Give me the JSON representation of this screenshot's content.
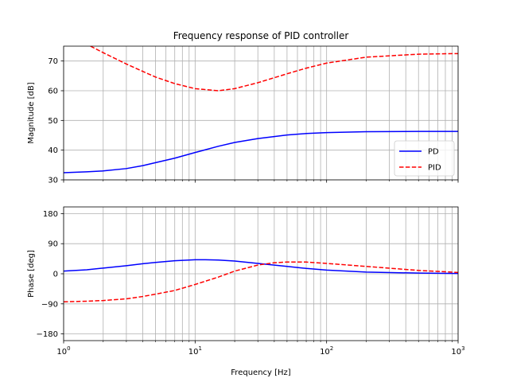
{
  "chart_data": [
    {
      "type": "line",
      "title": "Frequency response of PID controller",
      "xlabel": "",
      "ylabel": "Magnitude [dB]",
      "xscale": "log",
      "xlim": [
        1,
        1000
      ],
      "ylim": [
        30,
        75
      ],
      "yticks": [
        30,
        40,
        50,
        60,
        70
      ],
      "grid": true,
      "legend": "lower-right",
      "series": [
        {
          "name": "PD",
          "color": "#0000ff",
          "style": "solid",
          "x": [
            1,
            1.5,
            2,
            3,
            4,
            5,
            7,
            10,
            15,
            20,
            30,
            50,
            70,
            100,
            200,
            500,
            1000
          ],
          "values": [
            32.4,
            32.7,
            33.0,
            33.8,
            34.8,
            35.8,
            37.3,
            39.2,
            41.3,
            42.6,
            43.9,
            45.1,
            45.6,
            45.9,
            46.2,
            46.3,
            46.3
          ]
        },
        {
          "name": "PID",
          "color": "#ff0000",
          "style": "dashed",
          "x": [
            1.6,
            2,
            3,
            4,
            5,
            7,
            10,
            15,
            20,
            30,
            50,
            70,
            100,
            200,
            500,
            1000
          ],
          "values": [
            75.0,
            72.8,
            69.0,
            66.5,
            64.6,
            62.4,
            60.7,
            60.0,
            60.7,
            62.7,
            65.7,
            67.6,
            69.3,
            71.3,
            72.3,
            72.5
          ]
        }
      ]
    },
    {
      "type": "line",
      "title": "",
      "xlabel": "Frequency [Hz]",
      "ylabel": "Phase [deg]",
      "xscale": "log",
      "xlim": [
        1,
        1000
      ],
      "ylim": [
        -200,
        200
      ],
      "yticks": [
        -180,
        -90,
        0,
        90,
        180
      ],
      "grid": true,
      "series": [
        {
          "name": "PD",
          "color": "#0000ff",
          "style": "solid",
          "x": [
            1,
            1.5,
            2,
            3,
            4,
            5,
            7,
            10,
            12,
            15,
            20,
            30,
            50,
            70,
            100,
            200,
            500,
            1000
          ],
          "values": [
            8,
            12,
            17,
            24,
            30,
            34,
            39,
            42,
            42,
            41,
            38,
            31,
            22,
            16,
            11,
            5,
            2,
            1
          ]
        },
        {
          "name": "PID",
          "color": "#ff0000",
          "style": "dashed",
          "x": [
            1,
            1.5,
            2,
            3,
            4,
            5,
            7,
            10,
            15,
            20,
            30,
            40,
            50,
            70,
            100,
            200,
            500,
            1000
          ],
          "values": [
            -84,
            -82,
            -80,
            -75,
            -68,
            -61,
            -50,
            -32,
            -10,
            8,
            26,
            33,
            35,
            35,
            31,
            22,
            10,
            4
          ]
        }
      ]
    }
  ]
}
